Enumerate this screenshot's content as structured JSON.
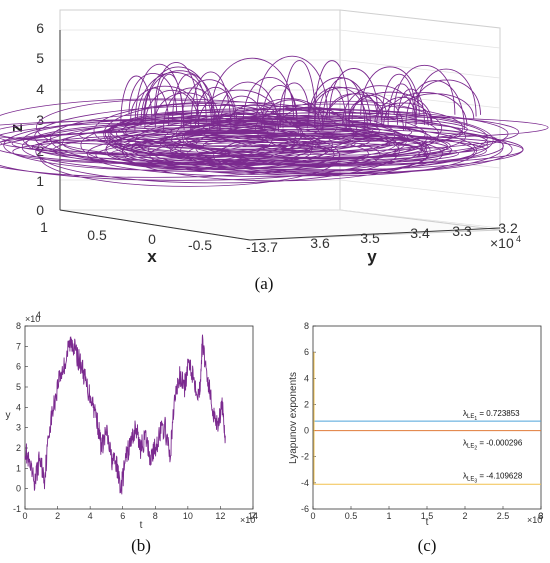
{
  "chart_data": [
    {
      "panel": "a",
      "type": "scatter",
      "caption": "(a)",
      "xlabel": "x",
      "ylabel": "y",
      "zlabel": "z",
      "x_ticks": [
        "1",
        "0.5",
        "0",
        "-0.5",
        "-13.7"
      ],
      "y_ticks": [
        "3.6",
        "3.5",
        "3.4",
        "3.3",
        "3.2"
      ],
      "y_exponent": "×10",
      "y_exponent_power": "4",
      "z_ticks": [
        "0",
        "1",
        "2",
        "3",
        "4",
        "5",
        "6"
      ],
      "zlim": [
        0,
        6
      ],
      "grid": true,
      "color": "#7b2a8f"
    },
    {
      "panel": "b",
      "type": "line",
      "caption": "(b)",
      "xlabel": "t",
      "ylabel": "y",
      "x_exponent": "×10",
      "x_exponent_power": "7",
      "y_exponent": "×10",
      "y_exponent_power": "4",
      "x_ticks": [
        "0",
        "2",
        "4",
        "6",
        "8",
        "10",
        "12",
        "14"
      ],
      "y_ticks": [
        "-1",
        "0",
        "1",
        "2",
        "3",
        "4",
        "5",
        "6",
        "7",
        "8"
      ],
      "xlim": [
        0,
        14
      ],
      "ylim": [
        -1,
        8
      ],
      "color": "#7b2a8f",
      "series": [
        {
          "x": [
            0,
            0.3,
            0.6,
            0.9,
            1.2,
            1.5,
            1.8,
            2.1,
            2.4,
            2.7,
            2.9,
            3.2,
            3.5,
            3.8,
            4.1,
            4.4,
            4.7,
            5.0,
            5.3,
            5.6,
            5.9,
            6.2,
            6.5,
            6.8,
            7.1,
            7.4,
            7.7,
            8.0,
            8.3,
            8.6,
            8.9,
            9.2,
            9.5,
            9.8,
            10.1,
            10.4,
            10.7,
            10.9,
            11.2,
            11.5,
            11.8,
            12.1,
            12.3
          ],
          "values": [
            2.0,
            1.0,
            0.3,
            1.5,
            0.5,
            3.0,
            4.2,
            5.5,
            6.0,
            7.0,
            7.3,
            6.5,
            6.0,
            5.0,
            4.4,
            3.5,
            2.0,
            2.8,
            1.5,
            1.2,
            0.0,
            1.5,
            2.3,
            3.0,
            2.0,
            2.5,
            1.5,
            2.0,
            2.8,
            3.0,
            1.5,
            4.5,
            5.5,
            5.0,
            6.3,
            5.3,
            4.6,
            7.2,
            5.5,
            4.0,
            3.2,
            4.0,
            2.6
          ]
        }
      ]
    },
    {
      "panel": "c",
      "type": "line",
      "caption": "(c)",
      "xlabel": "t",
      "ylabel": "Lyapunov exponents",
      "x_exponent": "×10",
      "x_exponent_power": "6",
      "x_ticks": [
        "0",
        "0.5",
        "1",
        "1.5",
        "2",
        "2.5",
        "3"
      ],
      "y_ticks": [
        "-6",
        "-4",
        "-2",
        "0",
        "2",
        "4",
        "6",
        "8"
      ],
      "xlim": [
        0,
        3
      ],
      "ylim": [
        -6,
        8
      ],
      "series": [
        {
          "label_base": "λ",
          "label_sub": "LE",
          "label_subsub": "1",
          "label_value": " = 0.723853",
          "value": 0.723853,
          "color": "#4fa3d9"
        },
        {
          "label_base": "λ",
          "label_sub": "LE",
          "label_subsub": "2",
          "label_value": " = -0.000296",
          "value": -0.000296,
          "color": "#e07b39"
        },
        {
          "label_base": "λ",
          "label_sub": "LE",
          "label_subsub": "3",
          "label_value": " = -4.109628",
          "value": -4.109628,
          "color": "#f2c14e"
        }
      ]
    }
  ]
}
